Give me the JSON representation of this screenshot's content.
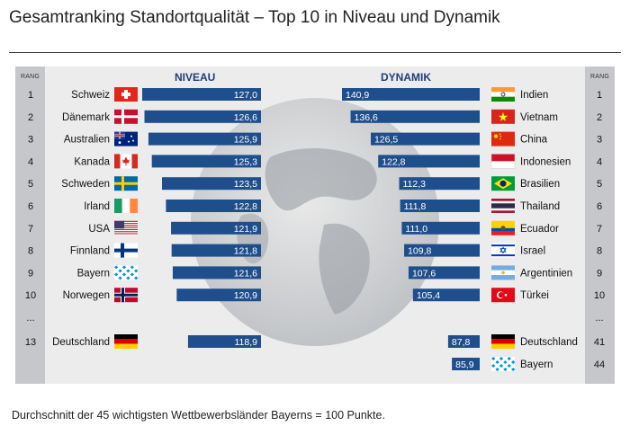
{
  "title": "Gesamtranking Standortqualität – Top 10 in Niveau und Dynamik",
  "footnote": "Durchschnitt der 45 wichtigsten Wettbewerbsländer Bayerns = 100 Punkte.",
  "rang_label": "RANG",
  "ellipsis": "...",
  "colors": {
    "bar": "#1f4e8c",
    "header": "#1f3e7a",
    "rang_bg": "#c5c7cb",
    "panel_bg": "#ececec"
  },
  "chart_data": [
    {
      "type": "bar",
      "title": "NIVEAU",
      "categories": [
        "Schweiz",
        "Dänemark",
        "Australien",
        "Kanada",
        "Schweden",
        "Irland",
        "USA",
        "Finnland",
        "Bayern",
        "Norwegen",
        "Deutschland"
      ],
      "ranks": [
        "1",
        "2",
        "3",
        "4",
        "5",
        "6",
        "7",
        "8",
        "9",
        "10",
        "13"
      ],
      "values": [
        127.0,
        126.6,
        125.9,
        125.3,
        123.5,
        122.8,
        121.9,
        121.8,
        121.6,
        120.9,
        118.9
      ],
      "labels": [
        "127,0",
        "126,6",
        "125,9",
        "125,3",
        "123,5",
        "122,8",
        "121,9",
        "121,8",
        "121,6",
        "120,9",
        "118,9"
      ],
      "flags": [
        "flag-switzerland",
        "flag-denmark",
        "flag-australia",
        "flag-canada",
        "flag-sweden",
        "flag-ireland",
        "flag-usa",
        "flag-finland",
        "flag-bavaria",
        "flag-norway",
        "flag-germany"
      ]
    },
    {
      "type": "bar",
      "title": "DYNAMIK",
      "categories": [
        "Indien",
        "Vietnam",
        "China",
        "Indonesien",
        "Brasilien",
        "Thailand",
        "Ecuador",
        "Israel",
        "Argentinien",
        "Türkei",
        "Deutschland",
        "Bayern"
      ],
      "ranks": [
        "1",
        "2",
        "3",
        "4",
        "5",
        "6",
        "7",
        "8",
        "9",
        "10",
        "41",
        "44"
      ],
      "values": [
        140.9,
        136.6,
        126.5,
        122.8,
        112.3,
        111.8,
        111.0,
        109.8,
        107.6,
        105.4,
        87.8,
        85.9
      ],
      "labels": [
        "140,9",
        "136,6",
        "126,5",
        "122,8",
        "112,3",
        "111,8",
        "111,0",
        "109,8",
        "107,6",
        "105,4",
        "87,8",
        "85,9"
      ],
      "flags": [
        "flag-india",
        "flag-vietnam",
        "flag-china",
        "flag-indonesia",
        "flag-brazil",
        "flag-thailand",
        "flag-ecuador",
        "flag-israel",
        "flag-argentina",
        "flag-turkey",
        "flag-germany",
        "flag-bavaria"
      ]
    }
  ]
}
